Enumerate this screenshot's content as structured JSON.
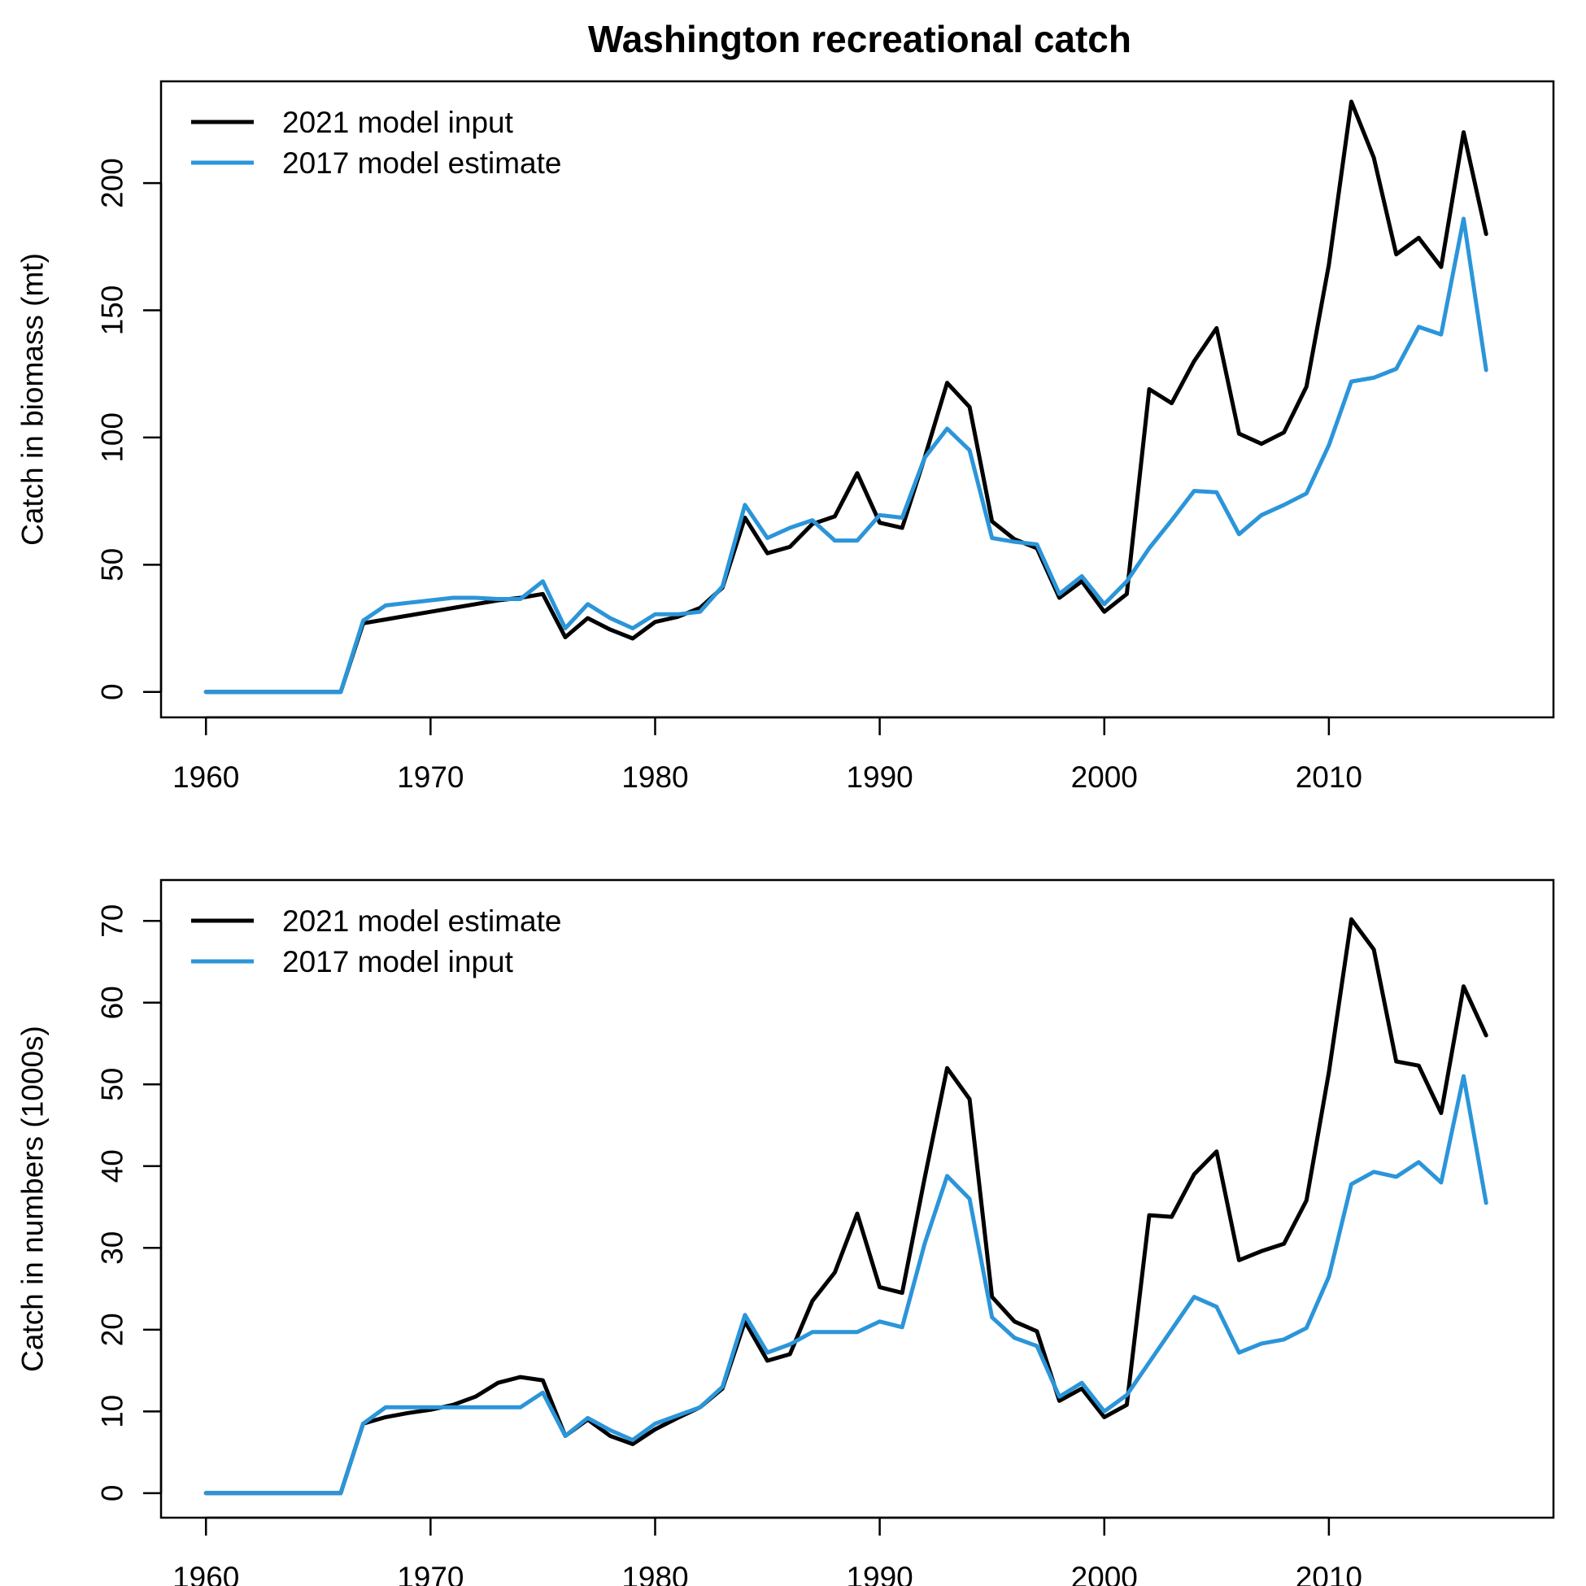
{
  "figure_title": "Washington recreational catch",
  "colors": {
    "black_series": "#000000",
    "blue_series": "#2b95d9",
    "frame": "#000000"
  },
  "chart_data": [
    {
      "type": "line",
      "title": "Washington recreational catch",
      "xlabel": "",
      "ylabel": "Catch in biomass (mt)",
      "xlim": [
        1958,
        2020
      ],
      "ylim": [
        -10,
        240
      ],
      "x_ticks": [
        1960,
        1970,
        1980,
        1990,
        2000,
        2010
      ],
      "y_ticks": [
        0,
        50,
        100,
        150,
        200
      ],
      "grid": false,
      "legend_position": "top-left",
      "x": [
        1960,
        1961,
        1962,
        1963,
        1964,
        1965,
        1966,
        1967,
        1968,
        1969,
        1970,
        1971,
        1972,
        1973,
        1974,
        1975,
        1976,
        1977,
        1978,
        1979,
        1980,
        1981,
        1982,
        1983,
        1984,
        1985,
        1986,
        1987,
        1988,
        1989,
        1990,
        1991,
        1992,
        1993,
        1994,
        1995,
        1996,
        1997,
        1998,
        1999,
        2000,
        2001,
        2002,
        2003,
        2004,
        2005,
        2006,
        2007,
        2008,
        2009,
        2010,
        2011,
        2012,
        2013,
        2014,
        2015,
        2016,
        2017
      ],
      "series": [
        {
          "name": "2021 model input",
          "color": "#000000",
          "values": [
            0,
            0,
            0,
            0,
            0,
            0,
            0,
            27,
            28.5,
            30,
            31.5,
            33,
            34.5,
            36,
            37,
            38.5,
            21.5,
            29,
            24.5,
            21,
            27.5,
            29.5,
            33,
            41,
            68.5,
            54.5,
            57,
            66,
            69,
            86,
            66.5,
            64.5,
            92,
            121.5,
            112,
            67,
            60,
            56.5,
            37,
            43.5,
            31.5,
            38.5,
            119,
            113.5,
            130,
            143,
            101.5,
            97.5,
            102,
            120,
            168,
            232,
            210,
            172,
            178.5,
            167,
            220,
            180
          ]
        },
        {
          "name": "2017 model estimate",
          "color": "#2b95d9",
          "values": [
            0,
            0,
            0,
            0,
            0,
            0,
            0,
            28,
            34,
            35,
            36,
            37,
            37,
            36.5,
            36.5,
            43.5,
            25,
            34.5,
            29,
            25,
            30.5,
            30.5,
            31.5,
            41.5,
            73.5,
            60.5,
            64.5,
            67.5,
            59.5,
            59.5,
            69.5,
            68.5,
            92,
            103.5,
            95,
            60.5,
            59,
            58,
            38.5,
            45.5,
            34.5,
            43.5,
            56.5,
            67.5,
            79,
            78.5,
            62,
            69.5,
            73.5,
            78,
            97,
            122,
            123.5,
            127,
            143.5,
            140.5,
            186,
            126.5
          ]
        }
      ]
    },
    {
      "type": "line",
      "title": "",
      "xlabel": "",
      "ylabel": "Catch in numbers (1000s)",
      "xlim": [
        1958,
        2020
      ],
      "ylim": [
        -3,
        75
      ],
      "x_ticks": [
        1960,
        1970,
        1980,
        1990,
        2000,
        2010
      ],
      "y_ticks": [
        0,
        10,
        20,
        30,
        40,
        50,
        60,
        70
      ],
      "grid": false,
      "legend_position": "top-left",
      "x": [
        1960,
        1961,
        1962,
        1963,
        1964,
        1965,
        1966,
        1967,
        1968,
        1969,
        1970,
        1971,
        1972,
        1973,
        1974,
        1975,
        1976,
        1977,
        1978,
        1979,
        1980,
        1981,
        1982,
        1983,
        1984,
        1985,
        1986,
        1987,
        1988,
        1989,
        1990,
        1991,
        1992,
        1993,
        1994,
        1995,
        1996,
        1997,
        1998,
        1999,
        2000,
        2001,
        2002,
        2003,
        2004,
        2005,
        2006,
        2007,
        2008,
        2009,
        2010,
        2011,
        2012,
        2013,
        2014,
        2015,
        2016,
        2017
      ],
      "series": [
        {
          "name": "2021 model estimate",
          "color": "#000000",
          "values": [
            0,
            0,
            0,
            0,
            0,
            0,
            0,
            8.5,
            9.3,
            9.8,
            10.2,
            10.8,
            11.8,
            13.5,
            14.2,
            13.8,
            7.0,
            9.0,
            7.0,
            6.0,
            7.8,
            9.2,
            10.5,
            12.8,
            21.0,
            16.2,
            17.0,
            23.5,
            27.0,
            34.2,
            25.2,
            24.5,
            38.5,
            52.0,
            48.2,
            24.0,
            21.0,
            19.8,
            11.3,
            12.8,
            9.3,
            10.8,
            34.0,
            33.8,
            39.0,
            41.8,
            28.5,
            29.6,
            30.5,
            35.8,
            51.5,
            70.2,
            66.5,
            52.8,
            52.3,
            46.5,
            62.0,
            56.0
          ]
        },
        {
          "name": "2017 model input",
          "color": "#2b95d9",
          "values": [
            0,
            0,
            0,
            0,
            0,
            0,
            0,
            8.5,
            10.5,
            10.5,
            10.5,
            10.5,
            10.5,
            10.5,
            10.5,
            12.3,
            7.0,
            9.2,
            7.7,
            6.5,
            8.5,
            9.5,
            10.5,
            13.0,
            21.8,
            17.2,
            18.2,
            19.7,
            19.7,
            19.7,
            21.0,
            20.3,
            30.5,
            38.8,
            36.0,
            21.5,
            19.0,
            18.0,
            11.8,
            13.5,
            10.0,
            12.0,
            16.0,
            20.0,
            24.0,
            22.8,
            17.2,
            18.3,
            18.8,
            20.2,
            26.5,
            37.8,
            39.3,
            38.7,
            40.5,
            38.0,
            51.0,
            35.5
          ]
        }
      ]
    }
  ]
}
